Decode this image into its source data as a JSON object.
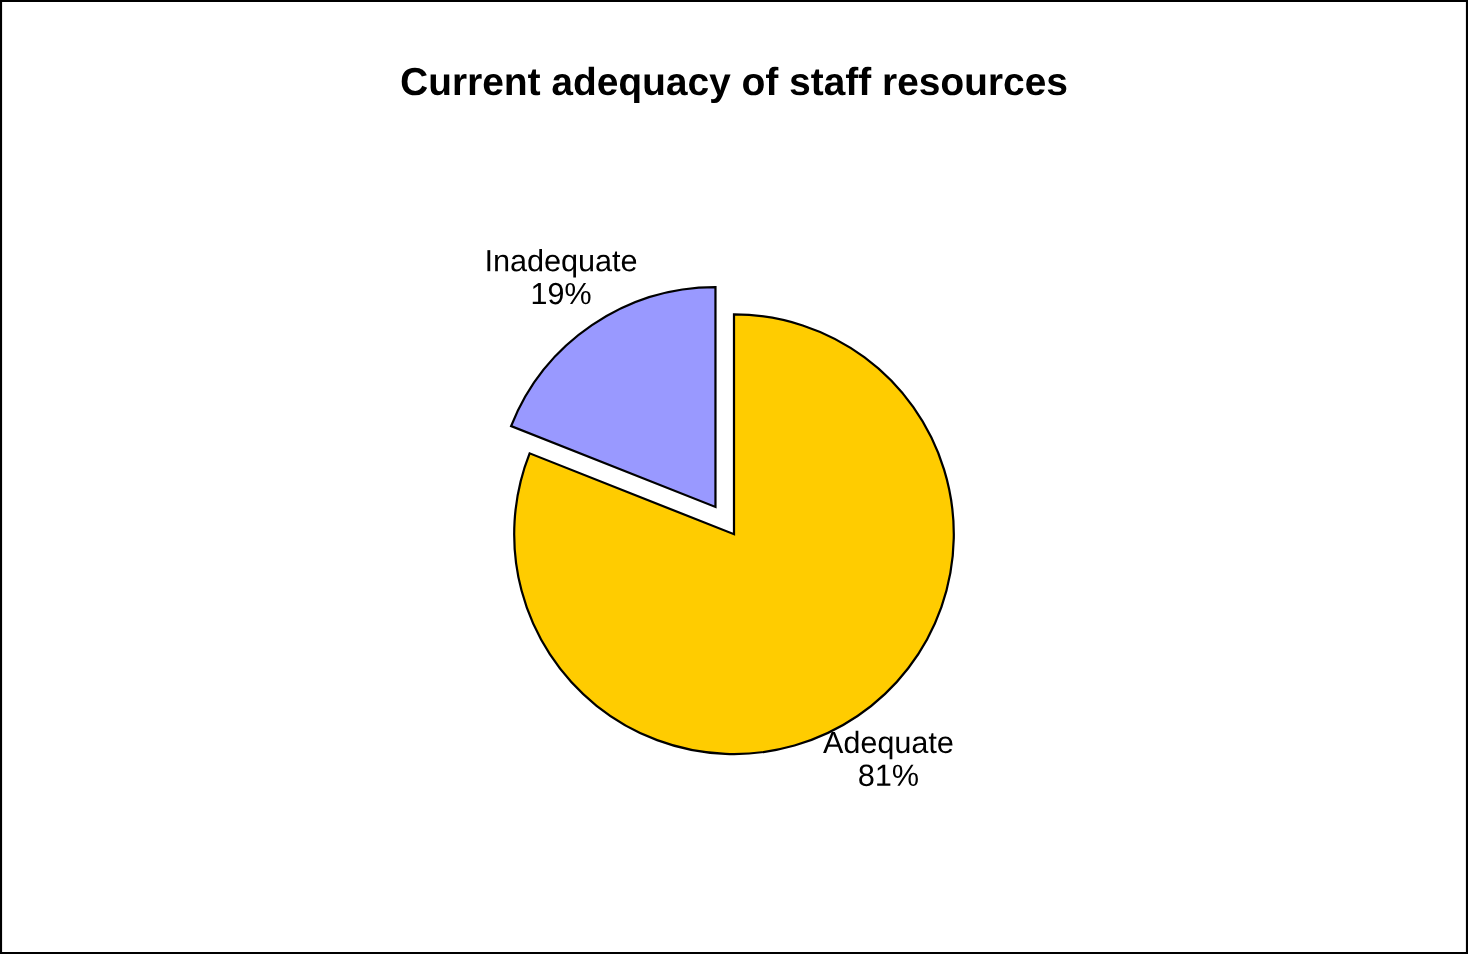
{
  "chart_data": {
    "type": "pie",
    "title": "Current adequacy of staff resources",
    "categories": [
      "Adequate",
      "Inadequate"
    ],
    "values": [
      81,
      19
    ],
    "value_labels": [
      "81%",
      "19%"
    ],
    "colors": [
      "#ffcc00",
      "#9999ff"
    ]
  }
}
